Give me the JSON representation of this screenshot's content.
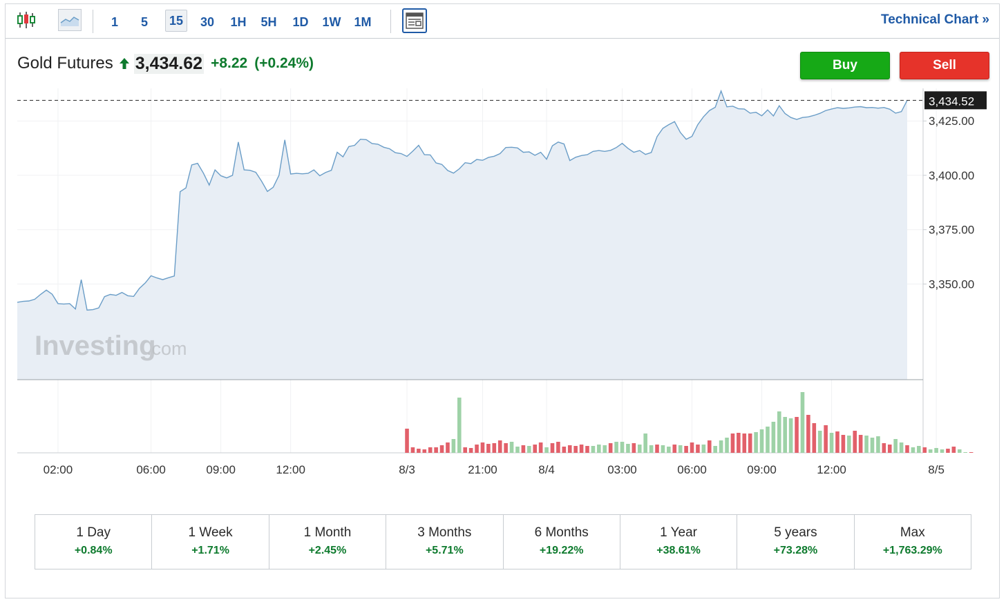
{
  "toolbar": {
    "chart_type_icons": [
      "candlestick-icon",
      "area-chart-icon",
      "news-layout-icon"
    ],
    "timeframes": [
      "1",
      "5",
      "15",
      "30",
      "1H",
      "5H",
      "1D",
      "1W",
      "1M"
    ],
    "active_timeframe": "15",
    "technical_chart_label": "Technical Chart »"
  },
  "instrument": {
    "name": "Gold Futures",
    "price": "3,434.62",
    "change": "+8.22",
    "change_pct": "(+0.24%)",
    "direction": "up",
    "up_color": "#0d7a2d"
  },
  "actions": {
    "buy_label": "Buy",
    "sell_label": "Sell"
  },
  "watermark": {
    "brand": "Investing",
    "suffix": ".com"
  },
  "chart_data": {
    "type": "area",
    "current_price_label": "3,434.52",
    "y_ticks": [
      "3,425.00",
      "3,400.00",
      "3,375.00",
      "3,350.00"
    ],
    "y_tick_values": [
      3425,
      3400,
      3375,
      3350
    ],
    "ylim": [
      3306,
      3440
    ],
    "x_ticks": [
      "02:00",
      "06:00",
      "09:00",
      "12:00",
      "8/3",
      "21:00",
      "8/4",
      "03:00",
      "06:00",
      "09:00",
      "12:00",
      "8/5"
    ],
    "x_tick_index": [
      7,
      23,
      35,
      47,
      67,
      80,
      91,
      104,
      116,
      128,
      140,
      158
    ],
    "price_series": [
      3341.6,
      3342,
      3342.2,
      3343,
      3345.2,
      3347.2,
      3345.3,
      3341,
      3340.8,
      3341,
      3338.5,
      3352,
      3338,
      3338.2,
      3339,
      3344.2,
      3345.2,
      3344.8,
      3346.1,
      3344.6,
      3344.3,
      3348,
      3350.5,
      3353.8,
      3352.8,
      3352,
      3352.9,
      3353.7,
      3392.5,
      3394.2,
      3404.8,
      3405.5,
      3401,
      3395.5,
      3402.5,
      3399.8,
      3398.8,
      3400,
      3415.3,
      3402.5,
      3402.3,
      3401.4,
      3397.3,
      3392.6,
      3394.5,
      3400,
      3416.3,
      3400.6,
      3400.9,
      3400.7,
      3400.9,
      3402.5,
      3399.8,
      3401.3,
      3402.3,
      3410.6,
      3408.5,
      3413.2,
      3413.8,
      3416.6,
      3416.4,
      3414.6,
      3414.3,
      3412.9,
      3412.2,
      3410.4,
      3410,
      3408.7,
      3411.1,
      3413.8,
      3409.5,
      3409.4,
      3405.7,
      3405,
      3402.2,
      3401,
      3403,
      3405.8,
      3405.4,
      3407.3,
      3406.9,
      3408.2,
      3408.8,
      3410,
      3412.8,
      3412.9,
      3412.6,
      3410.6,
      3410.8,
      3409.2,
      3410.6,
      3407.4,
      3413.6,
      3415.3,
      3414.4,
      3406.8,
      3408.3,
      3409.1,
      3409.5,
      3411,
      3411.4,
      3411,
      3411.5,
      3412.8,
      3414.7,
      3412.4,
      3410.6,
      3411.4,
      3409.6,
      3410.5,
      3417.8,
      3421.6,
      3423.3,
      3424.7,
      3419.7,
      3416.6,
      3417.9,
      3423.3,
      3427,
      3429.8,
      3431.3,
      3438.8,
      3431.5,
      3431.8,
      3430.6,
      3430.5,
      3428.6,
      3429,
      3427.4,
      3430.1,
      3427.3,
      3432,
      3428.4,
      3426.6,
      3425.7,
      3426.6,
      3426.9,
      3427.6,
      3428.5,
      3429.8,
      3430.5,
      3431.1,
      3430.8,
      3431,
      3431.4,
      3431.6,
      3431.1,
      3431.2,
      3430.9,
      3431.2,
      3430.4,
      3428.6,
      3429.3,
      3434.5
    ],
    "volume_series": [
      0,
      0,
      0,
      0,
      0,
      0,
      0,
      0,
      0,
      0,
      0,
      0,
      0,
      0,
      0,
      0,
      0,
      0,
      0,
      0,
      0,
      0,
      0,
      0,
      0,
      0,
      0,
      0,
      0,
      0,
      0,
      0,
      0,
      0,
      0,
      0,
      0,
      0,
      0,
      0,
      0,
      0,
      0,
      0,
      0,
      0,
      0,
      0,
      0,
      0,
      0,
      0,
      0,
      0,
      0,
      0,
      0,
      0,
      0,
      0,
      0,
      0,
      0,
      0,
      0,
      0,
      0,
      35,
      8,
      6,
      5,
      8,
      8,
      11,
      15,
      20,
      80,
      8,
      7,
      12,
      15,
      13,
      14,
      18,
      14,
      16,
      9,
      11,
      10,
      12,
      15,
      8,
      14,
      16,
      9,
      11,
      10,
      12,
      10,
      10,
      12,
      11,
      14,
      16,
      16,
      13,
      14,
      12,
      28,
      11,
      12,
      11,
      9,
      12,
      11,
      10,
      15,
      12,
      12,
      18,
      10,
      18,
      22,
      28,
      29,
      28,
      28,
      30,
      34,
      38,
      45,
      60,
      52,
      50,
      52,
      88,
      55,
      43,
      32,
      40,
      29,
      31,
      26,
      25,
      32,
      26,
      25,
      22,
      24,
      14,
      12,
      20,
      15,
      11,
      8,
      10,
      8,
      5,
      7,
      5,
      6,
      9,
      5,
      1,
      1
    ],
    "volume_up": [
      0,
      0,
      0,
      0,
      0,
      0,
      0,
      0,
      0,
      0,
      0,
      0,
      0,
      0,
      0,
      0,
      0,
      0,
      0,
      0,
      0,
      0,
      0,
      0,
      0,
      0,
      0,
      0,
      0,
      0,
      0,
      0,
      0,
      0,
      0,
      0,
      0,
      0,
      0,
      0,
      0,
      0,
      0,
      0,
      0,
      0,
      0,
      0,
      0,
      0,
      0,
      0,
      0,
      0,
      0,
      0,
      0,
      0,
      0,
      0,
      0,
      0,
      0,
      0,
      0,
      0,
      0,
      0,
      0,
      0,
      0,
      0,
      0,
      0,
      0,
      1,
      1,
      0,
      0,
      0,
      0,
      0,
      0,
      0,
      0,
      1,
      1,
      0,
      1,
      0,
      0,
      1,
      0,
      0,
      0,
      0,
      0,
      0,
      0,
      1,
      1,
      1,
      0,
      1,
      1,
      1,
      0,
      1,
      1,
      1,
      0,
      1,
      1,
      0,
      1,
      0,
      0,
      0,
      1,
      0,
      1,
      1,
      1,
      0,
      0,
      0,
      0,
      1,
      1,
      1,
      1,
      1,
      1,
      1,
      0,
      1,
      0,
      0,
      1,
      0,
      1,
      0,
      0,
      1,
      0,
      0,
      1,
      1,
      1,
      0,
      0,
      1,
      1,
      0,
      1,
      1,
      0,
      1,
      1,
      1,
      0,
      0,
      1,
      1
    ],
    "colors": {
      "line": "#6a9dc7",
      "area": "#e8eef5",
      "vol_up": "#9ed2a7",
      "vol_down": "#e2606a"
    }
  },
  "periods": [
    {
      "label": "1 Day",
      "value": "+0.84%"
    },
    {
      "label": "1 Week",
      "value": "+1.71%"
    },
    {
      "label": "1 Month",
      "value": "+2.45%"
    },
    {
      "label": "3 Months",
      "value": "+5.71%"
    },
    {
      "label": "6 Months",
      "value": "+19.22%"
    },
    {
      "label": "1 Year",
      "value": "+38.61%"
    },
    {
      "label": "5 years",
      "value": "+73.28%"
    },
    {
      "label": "Max",
      "value": "+1,763.29%"
    }
  ]
}
